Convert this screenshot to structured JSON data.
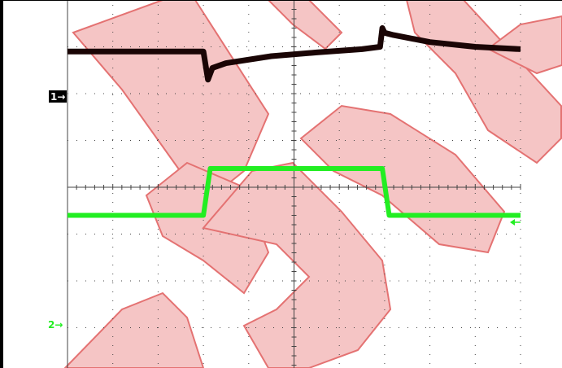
{
  "colors": {
    "background": "#ffffff",
    "frame": "#000000",
    "grid": "#444444",
    "watermark": "#f4bcbc",
    "watermark_outline": "#e05a5a",
    "channel1": "#1a0505",
    "channel1_marker_bg": "#000000",
    "channel1_marker_fg": "#ffffff",
    "channel2": "#22ee22"
  },
  "markers": {
    "ch1_label": "1→",
    "ch2_label": "2→",
    "trigger_level_icon": "left-arrow-icon"
  },
  "watermark_icon": "agilent-logo-watermark-icon",
  "chart_data": {
    "type": "line",
    "grid": true,
    "divisions": {
      "x": 10,
      "y": 8
    },
    "xlim": [
      0,
      10
    ],
    "ylim": [
      -4,
      4
    ],
    "series": [
      {
        "color": "#1a0505",
        "x": [
          0.0,
          3.0,
          3.05,
          3.1,
          3.2,
          3.5,
          4.5,
          5.5,
          6.5,
          6.9,
          6.95,
          7.0,
          7.2,
          8.0,
          9.0,
          10.0
        ],
        "y": [
          2.9,
          2.9,
          2.6,
          2.3,
          2.55,
          2.65,
          2.8,
          2.88,
          2.95,
          3.0,
          3.4,
          3.3,
          3.25,
          3.1,
          3.0,
          2.95
        ]
      },
      {
        "color": "#22ee22",
        "x": [
          0.0,
          3.0,
          3.15,
          6.95,
          7.1,
          10.0
        ],
        "y": [
          -0.6,
          -0.6,
          0.4,
          0.4,
          -0.6,
          -0.6
        ]
      }
    ]
  }
}
